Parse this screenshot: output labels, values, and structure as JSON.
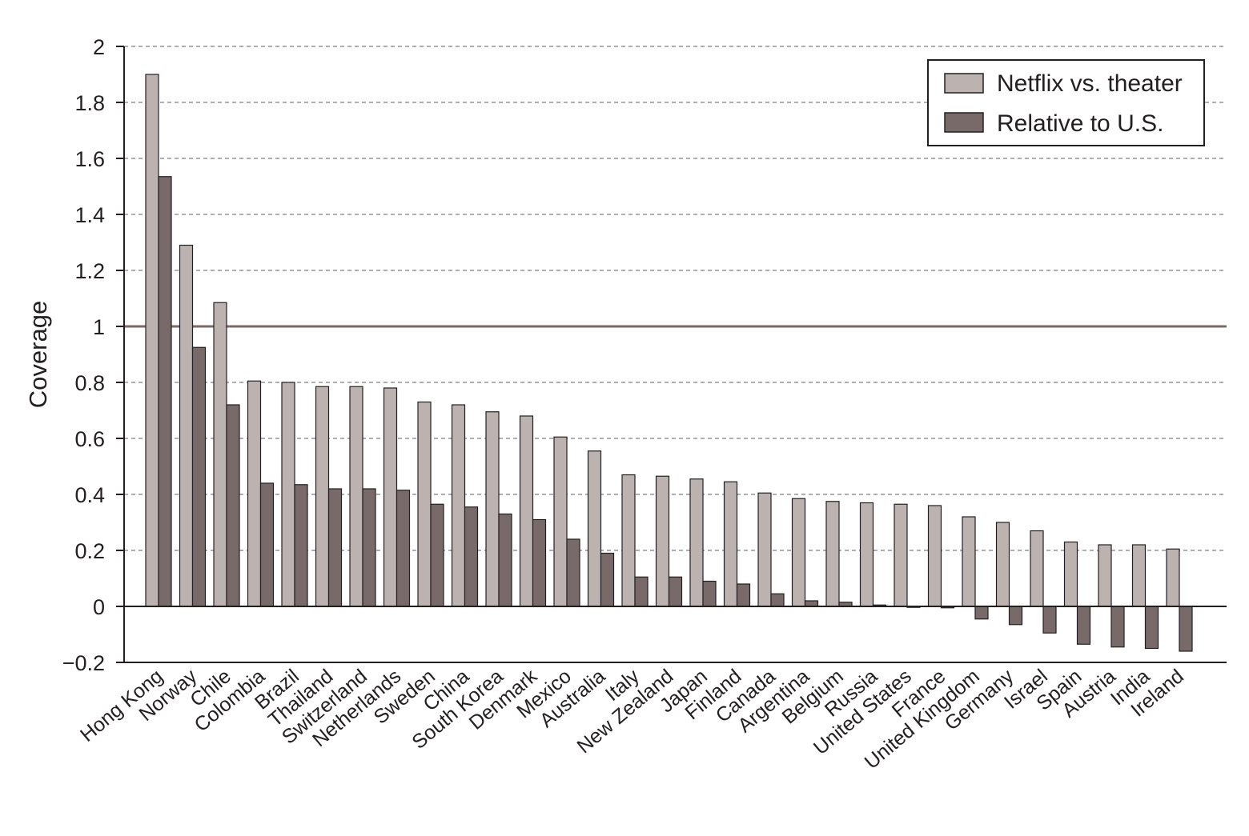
{
  "chart_data": {
    "type": "bar",
    "title": "",
    "xlabel": "",
    "ylabel": "Coverage",
    "ylim": [
      -0.2,
      2
    ],
    "yticks": [
      {
        "value": -0.2,
        "label": "−0.2"
      },
      {
        "value": 0,
        "label": "0"
      },
      {
        "value": 0.2,
        "label": "0.2"
      },
      {
        "value": 0.4,
        "label": "0.4"
      },
      {
        "value": 0.6,
        "label": "0.6"
      },
      {
        "value": 0.8,
        "label": "0.8"
      },
      {
        "value": 1,
        "label": "1"
      },
      {
        "value": 1.2,
        "label": "1.2"
      },
      {
        "value": 1.4,
        "label": "1.4"
      },
      {
        "value": 1.6,
        "label": "1.6"
      },
      {
        "value": 1.8,
        "label": "1.8"
      },
      {
        "value": 2,
        "label": "2"
      }
    ],
    "grid": "horizontal dashed",
    "reference_line": 1,
    "legend_position": "top-right",
    "categories": [
      "Hong Kong",
      "Norway",
      "Chile",
      "Colombia",
      "Brazil",
      "Thailand",
      "Switzerland",
      "Netherlands",
      "Sweden",
      "China",
      "South Korea",
      "Denmark",
      "Mexico",
      "Australia",
      "Italy",
      "New Zealand",
      "Japan",
      "Finland",
      "Canada",
      "Argentina",
      "Belgium",
      "Russia",
      "United States",
      "France",
      "United Kingdom",
      "Germany",
      "Israel",
      "Spain",
      "Austria",
      "India",
      "Ireland"
    ],
    "series": [
      {
        "name": "Netflix vs. theater",
        "color": "#bcb3b1",
        "values": [
          1.9,
          1.29,
          1.085,
          0.805,
          0.8,
          0.785,
          0.785,
          0.78,
          0.73,
          0.72,
          0.695,
          0.68,
          0.605,
          0.555,
          0.47,
          0.465,
          0.455,
          0.445,
          0.405,
          0.385,
          0.375,
          0.37,
          0.365,
          0.36,
          0.32,
          0.3,
          0.27,
          0.23,
          0.22,
          0.22,
          0.205
        ]
      },
      {
        "name": "Relative to U.S.",
        "color": "#786a69",
        "values": [
          1.535,
          0.925,
          0.72,
          0.44,
          0.435,
          0.42,
          0.42,
          0.415,
          0.365,
          0.355,
          0.33,
          0.31,
          0.24,
          0.19,
          0.105,
          0.105,
          0.09,
          0.08,
          0.045,
          0.02,
          0.015,
          0.005,
          0.0,
          -0.005,
          -0.045,
          -0.065,
          -0.095,
          -0.135,
          -0.145,
          -0.15,
          -0.16
        ]
      }
    ],
    "colors": {
      "axis": "#231f20",
      "grid": "#7f7f7f",
      "reference": "#7c6a69",
      "bar_stroke": "#231f20"
    }
  }
}
